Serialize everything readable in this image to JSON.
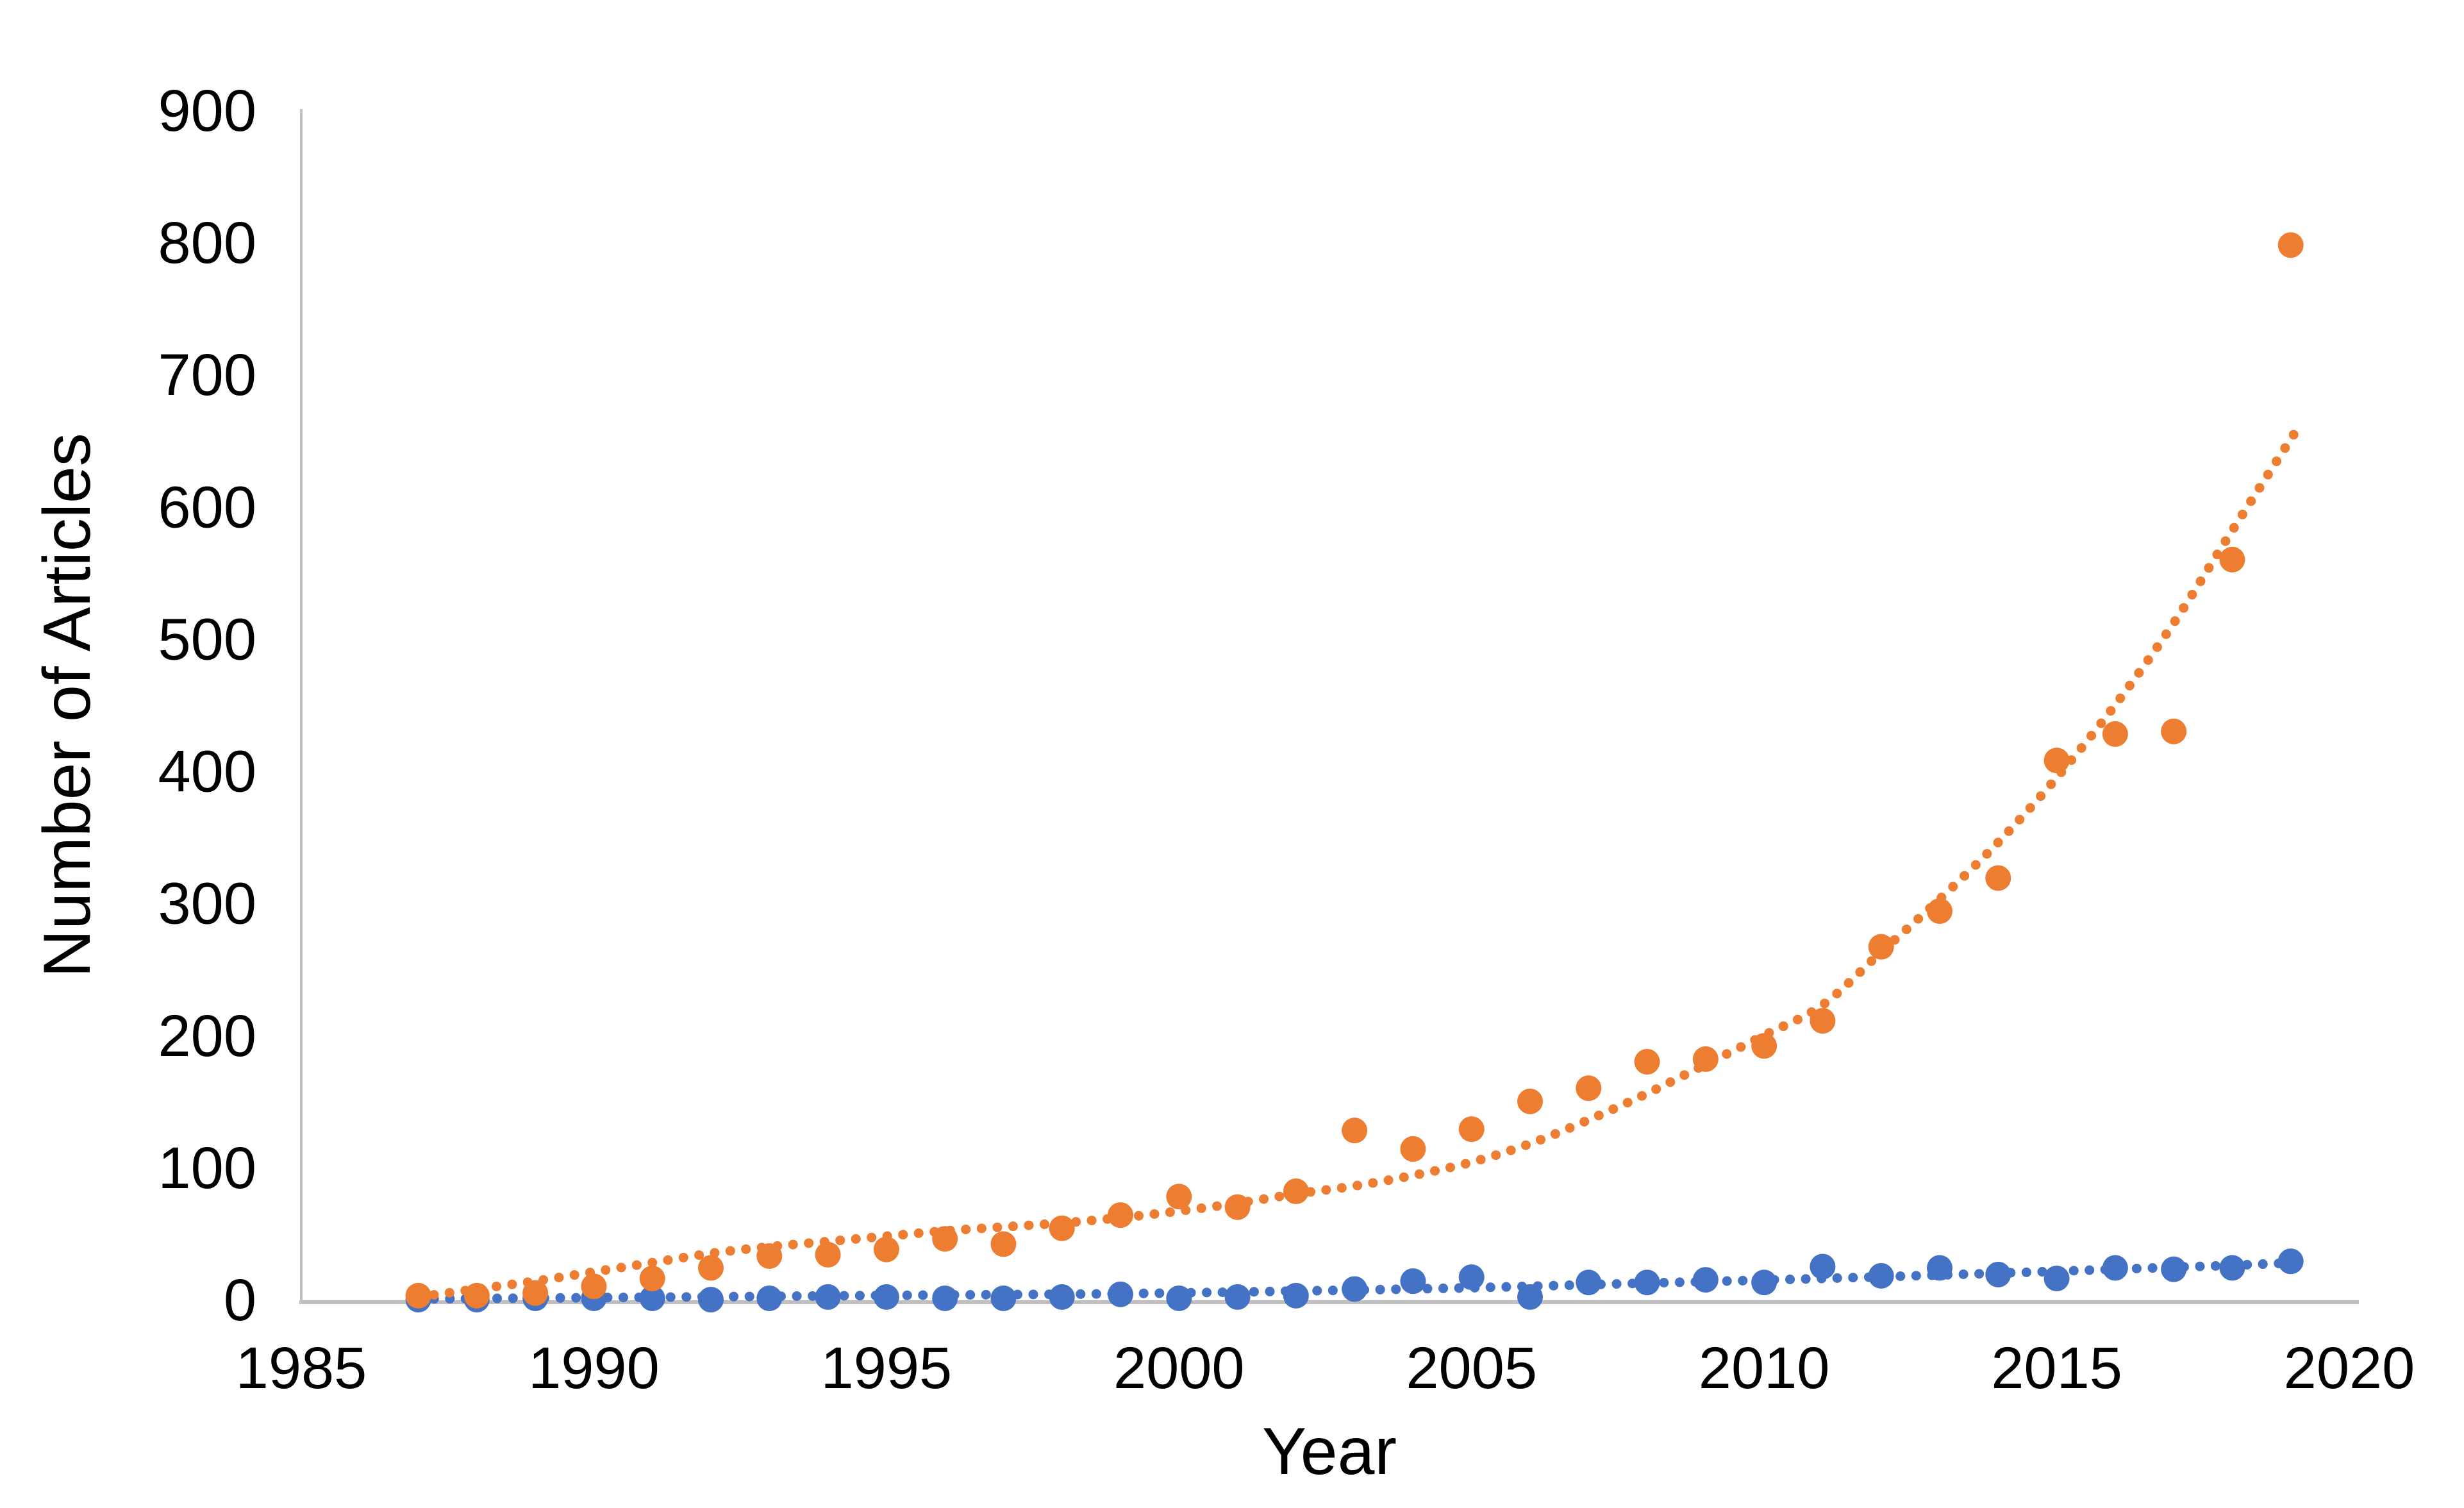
{
  "page": {
    "background": "#FFFFFF"
  },
  "chart_data": {
    "type": "scatter",
    "title": "",
    "xlabel": "Year",
    "ylabel": "Number of Articles",
    "x_ticks": [
      1985,
      1990,
      1995,
      2000,
      2005,
      2010,
      2015,
      2020
    ],
    "y_ticks": [
      0,
      100,
      200,
      300,
      400,
      500,
      600,
      700,
      800,
      900
    ],
    "xlim": [
      1985,
      2020
    ],
    "ylim": [
      0,
      900
    ],
    "grid": false,
    "legend": "none",
    "axis_color": "#BFBFBF",
    "text_color": "#000000",
    "x": [
      1987,
      1988,
      1989,
      1990,
      1991,
      1992,
      1993,
      1994,
      1995,
      1996,
      1997,
      1998,
      1999,
      2000,
      2001,
      2002,
      2003,
      2004,
      2005,
      2006,
      2007,
      2008,
      2009,
      2010,
      2011,
      2012,
      2013,
      2014,
      2015,
      2016,
      2017,
      2018,
      2019
    ],
    "series": [
      {
        "name": "orange-series",
        "color": "#ED7D31",
        "marker_radius": 20,
        "values": [
          3,
          3,
          5,
          10,
          16,
          24,
          33,
          34,
          38,
          46,
          42,
          54,
          64,
          78,
          70,
          82,
          128,
          114,
          129,
          150,
          160,
          180,
          182,
          192,
          211,
          267,
          294,
          319,
          408,
          428,
          430,
          560,
          798
        ],
        "trendline": {
          "style": "dotted",
          "points": [
            [
              1987,
              2
            ],
            [
              1988,
              8
            ],
            [
              1989,
              14
            ],
            [
              1990,
              21
            ],
            [
              1991,
              28
            ],
            [
              1992,
              35
            ],
            [
              1993,
              40
            ],
            [
              1994,
              44
            ],
            [
              1995,
              48
            ],
            [
              1996,
              52
            ],
            [
              1997,
              55
            ],
            [
              1998,
              58
            ],
            [
              1999,
              62
            ],
            [
              2000,
              67
            ],
            [
              2001,
              73
            ],
            [
              2002,
              80
            ],
            [
              2003,
              86
            ],
            [
              2004,
              94
            ],
            [
              2005,
              104
            ],
            [
              2006,
              118
            ],
            [
              2007,
              136
            ],
            [
              2008,
              156
            ],
            [
              2009,
              178
            ],
            [
              2010,
              200
            ],
            [
              2011,
              223
            ],
            [
              2012,
              263
            ],
            [
              2013,
              303
            ],
            [
              2014,
              346
            ],
            [
              2015,
              395
            ],
            [
              2016,
              450
            ],
            [
              2017,
              512
            ],
            [
              2018,
              582
            ],
            [
              2019.1,
              658
            ]
          ]
        }
      },
      {
        "name": "blue-series",
        "color": "#4472C4",
        "marker_radius": 20,
        "values": [
          0,
          0,
          1,
          1,
          1,
          0,
          1,
          2,
          2,
          1,
          1,
          2,
          4,
          1,
          2,
          3,
          8,
          14,
          17,
          2,
          13,
          13,
          15,
          13,
          25,
          18,
          24,
          19,
          16,
          24,
          23,
          24,
          29
        ],
        "trendline": {
          "style": "dotted",
          "points": [
            [
              1987,
              0.5
            ],
            [
              1990,
              1.5
            ],
            [
              1993,
              2.5
            ],
            [
              1996,
              3.5
            ],
            [
              1999,
              4.5
            ],
            [
              2002,
              6.5
            ],
            [
              2005,
              9
            ],
            [
              2008,
              12.5
            ],
            [
              2011,
              16
            ],
            [
              2014,
              20
            ],
            [
              2016,
              23
            ],
            [
              2018,
              26
            ],
            [
              2019.1,
              28
            ]
          ]
        }
      }
    ]
  }
}
